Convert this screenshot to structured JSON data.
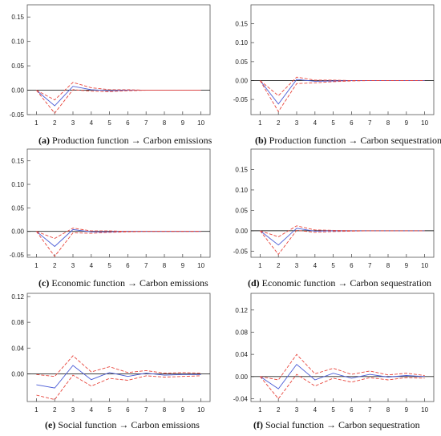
{
  "chart_data": [
    {
      "type": "line",
      "label": "(a)",
      "caption": "Production function → Carbon emissions",
      "x": [
        1,
        2,
        3,
        4,
        5,
        6,
        7,
        8,
        9,
        10
      ],
      "ylim": [
        -0.05,
        0.175
      ],
      "yticks": [
        -0.05,
        0.0,
        0.05,
        0.1,
        0.15
      ],
      "ytick_labels": [
        "-0.05",
        "0.00",
        "0.05",
        "0.10",
        "0.15"
      ],
      "series": [
        {
          "role": "response",
          "color": "#4a5bd6",
          "dashed": false,
          "values": [
            0.0,
            -0.032,
            0.008,
            0.001,
            -0.001,
            0.0,
            0.0,
            0.0,
            0.0,
            0.0
          ]
        },
        {
          "role": "upper",
          "color": "#e8453c",
          "dashed": true,
          "values": [
            0.0,
            -0.02,
            0.016,
            0.005,
            0.001,
            0.001,
            0.0,
            0.0,
            0.0,
            0.0
          ]
        },
        {
          "role": "lower",
          "color": "#e8453c",
          "dashed": true,
          "values": [
            0.0,
            -0.047,
            0.001,
            -0.002,
            -0.003,
            -0.001,
            0.0,
            0.0,
            0.0,
            0.0
          ]
        }
      ]
    },
    {
      "type": "line",
      "label": "(b)",
      "caption": "Production function  →  Carbon sequestration",
      "x": [
        1,
        2,
        3,
        4,
        5,
        6,
        7,
        8,
        9,
        10
      ],
      "ylim": [
        -0.09,
        0.2
      ],
      "yticks": [
        -0.05,
        0.0,
        0.05,
        0.1,
        0.15
      ],
      "ytick_labels": [
        "-0.05",
        "0.00",
        "0.05",
        "0.10",
        "0.15"
      ],
      "series": [
        {
          "role": "response",
          "color": "#4a5bd6",
          "dashed": false,
          "values": [
            0.0,
            -0.062,
            0.003,
            -0.002,
            -0.001,
            0.0,
            0.0,
            0.0,
            0.0,
            0.0
          ]
        },
        {
          "role": "upper",
          "color": "#e8453c",
          "dashed": true,
          "values": [
            0.0,
            -0.04,
            0.009,
            0.001,
            0.001,
            0.0,
            0.0,
            0.0,
            0.0,
            0.0
          ]
        },
        {
          "role": "lower",
          "color": "#e8453c",
          "dashed": true,
          "values": [
            0.0,
            -0.082,
            -0.008,
            -0.006,
            -0.003,
            -0.001,
            0.0,
            0.0,
            0.0,
            0.0
          ]
        }
      ]
    },
    {
      "type": "line",
      "label": "(c)",
      "caption": "Economic function → Carbon emissions",
      "x": [
        1,
        2,
        3,
        4,
        5,
        6,
        7,
        8,
        9,
        10
      ],
      "ylim": [
        -0.055,
        0.175
      ],
      "yticks": [
        -0.05,
        0.0,
        0.05,
        0.1,
        0.15
      ],
      "ytick_labels": [
        "-0.05",
        "0.00",
        "0.05",
        "0.10",
        "0.15"
      ],
      "series": [
        {
          "role": "response",
          "color": "#4a5bd6",
          "dashed": false,
          "values": [
            0.0,
            -0.032,
            0.004,
            -0.001,
            -0.001,
            0.0,
            0.0,
            0.0,
            0.0,
            0.0
          ]
        },
        {
          "role": "upper",
          "color": "#e8453c",
          "dashed": true,
          "values": [
            0.0,
            -0.015,
            0.007,
            0.001,
            0.001,
            0.0,
            0.0,
            0.0,
            0.0,
            0.0
          ]
        },
        {
          "role": "lower",
          "color": "#e8453c",
          "dashed": true,
          "values": [
            0.0,
            -0.053,
            -0.003,
            -0.004,
            -0.002,
            -0.001,
            0.0,
            0.0,
            0.0,
            0.0
          ]
        }
      ]
    },
    {
      "type": "line",
      "label": "(d)",
      "caption": "Economic function → Carbon sequestration",
      "x": [
        1,
        2,
        3,
        4,
        5,
        6,
        7,
        8,
        9,
        10
      ],
      "ylim": [
        -0.065,
        0.2
      ],
      "yticks": [
        -0.05,
        0.0,
        0.05,
        0.1,
        0.15
      ],
      "ytick_labels": [
        "-0.05",
        "0.00",
        "0.05",
        "0.10",
        "0.15"
      ],
      "series": [
        {
          "role": "response",
          "color": "#4a5bd6",
          "dashed": false,
          "values": [
            0.0,
            -0.035,
            0.006,
            -0.001,
            0.0,
            0.0,
            0.0,
            0.0,
            0.0,
            0.0
          ]
        },
        {
          "role": "upper",
          "color": "#e8453c",
          "dashed": true,
          "values": [
            0.0,
            -0.015,
            0.012,
            0.002,
            0.001,
            0.0,
            0.0,
            0.0,
            0.0,
            0.0
          ]
        },
        {
          "role": "lower",
          "color": "#e8453c",
          "dashed": true,
          "values": [
            0.0,
            -0.058,
            0.001,
            -0.004,
            -0.002,
            -0.001,
            0.0,
            0.0,
            0.0,
            0.0
          ]
        }
      ]
    },
    {
      "type": "line",
      "label": "(e)",
      "caption": "Social function → Carbon emissions",
      "x": [
        1,
        2,
        3,
        4,
        5,
        6,
        7,
        8,
        9,
        10
      ],
      "ylim": [
        -0.043,
        0.125
      ],
      "yticks": [
        0.0,
        0.04,
        0.08,
        0.12
      ],
      "ytick_labels": [
        "0.00",
        "0.04",
        "0.08",
        "0.12"
      ],
      "series": [
        {
          "role": "response",
          "color": "#4a5bd6",
          "dashed": false,
          "values": [
            -0.017,
            -0.022,
            0.013,
            -0.009,
            0.002,
            -0.004,
            0.001,
            -0.002,
            -0.001,
            -0.001
          ]
        },
        {
          "role": "upper",
          "color": "#e8453c",
          "dashed": true,
          "values": [
            -0.001,
            -0.004,
            0.028,
            0.003,
            0.011,
            0.002,
            0.005,
            0.001,
            0.002,
            0.001
          ]
        },
        {
          "role": "lower",
          "color": "#e8453c",
          "dashed": true,
          "values": [
            -0.033,
            -0.04,
            -0.002,
            -0.019,
            -0.007,
            -0.01,
            -0.003,
            -0.005,
            -0.004,
            -0.003
          ]
        }
      ]
    },
    {
      "type": "line",
      "label": "(f)",
      "caption": "Social function → Carbon sequestration",
      "x": [
        1,
        2,
        3,
        4,
        5,
        6,
        7,
        8,
        9,
        10
      ],
      "ylim": [
        -0.045,
        0.15
      ],
      "yticks": [
        -0.04,
        0.0,
        0.04,
        0.08,
        0.12
      ],
      "ytick_labels": [
        "-0.04",
        "0.00",
        "0.04",
        "0.08",
        "0.12"
      ],
      "series": [
        {
          "role": "response",
          "color": "#4a5bd6",
          "dashed": false,
          "values": [
            0.0,
            -0.022,
            0.022,
            -0.006,
            0.006,
            -0.003,
            0.004,
            -0.001,
            0.002,
            0.0
          ]
        },
        {
          "role": "upper",
          "color": "#e8453c",
          "dashed": true,
          "values": [
            0.0,
            -0.006,
            0.04,
            0.005,
            0.015,
            0.004,
            0.01,
            0.003,
            0.006,
            0.002
          ]
        },
        {
          "role": "lower",
          "color": "#e8453c",
          "dashed": true,
          "values": [
            0.0,
            -0.04,
            0.004,
            -0.017,
            -0.003,
            -0.01,
            -0.002,
            -0.006,
            -0.002,
            -0.003
          ]
        }
      ]
    }
  ]
}
